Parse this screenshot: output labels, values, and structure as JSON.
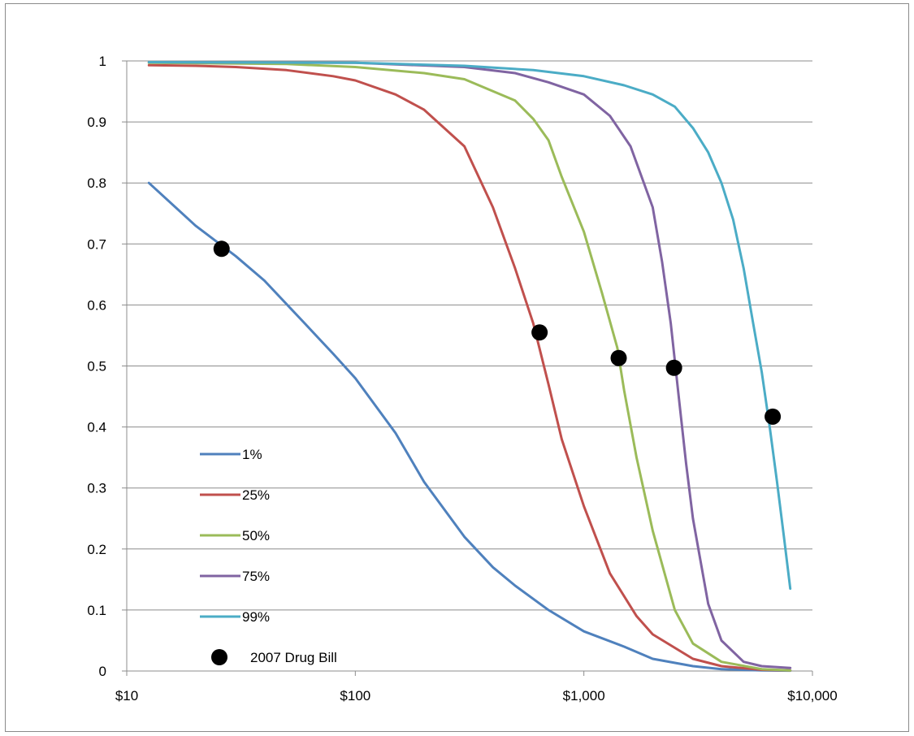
{
  "chart_data": {
    "type": "line",
    "x_scale": "log",
    "xlim": [
      10,
      10000
    ],
    "ylim": [
      0,
      1
    ],
    "grid": "horizontal",
    "legend_position": "left",
    "x_ticks": [
      {
        "value": 10,
        "label": "$10"
      },
      {
        "value": 100,
        "label": "$100"
      },
      {
        "value": 1000,
        "label": "$1,000"
      },
      {
        "value": 10000,
        "label": "$10,000"
      }
    ],
    "y_ticks": [
      {
        "value": 0,
        "label": "0"
      },
      {
        "value": 0.1,
        "label": "0.1"
      },
      {
        "value": 0.2,
        "label": "0.2"
      },
      {
        "value": 0.3,
        "label": "0.3"
      },
      {
        "value": 0.4,
        "label": "0.4"
      },
      {
        "value": 0.5,
        "label": "0.5"
      },
      {
        "value": 0.6,
        "label": "0.6"
      },
      {
        "value": 0.7,
        "label": "0.7"
      },
      {
        "value": 0.8,
        "label": "0.8"
      },
      {
        "value": 0.9,
        "label": "0.9"
      },
      {
        "value": 1,
        "label": "1"
      }
    ],
    "series": [
      {
        "name": "1%",
        "color": "#4f81bd",
        "x": [
          12.5,
          20,
          30,
          40,
          60,
          80,
          100,
          150,
          200,
          300,
          400,
          500,
          700,
          1000,
          1500,
          2000,
          3000,
          4000,
          6000,
          8000
        ],
        "y": [
          0.8,
          0.73,
          0.68,
          0.64,
          0.57,
          0.52,
          0.48,
          0.39,
          0.31,
          0.22,
          0.17,
          0.14,
          0.1,
          0.065,
          0.04,
          0.02,
          0.008,
          0.003,
          0.001,
          0.0005
        ]
      },
      {
        "name": "25%",
        "color": "#c0504d",
        "x": [
          12.5,
          20,
          30,
          50,
          80,
          100,
          150,
          200,
          300,
          400,
          500,
          600,
          700,
          800,
          1000,
          1300,
          1700,
          2000,
          3000,
          4000,
          6000,
          8000
        ],
        "y": [
          0.993,
          0.992,
          0.99,
          0.985,
          0.975,
          0.968,
          0.945,
          0.92,
          0.86,
          0.76,
          0.66,
          0.57,
          0.47,
          0.38,
          0.27,
          0.16,
          0.09,
          0.06,
          0.02,
          0.008,
          0.002,
          0.001
        ]
      },
      {
        "name": "50%",
        "color": "#9bbb59",
        "x": [
          12.5,
          50,
          100,
          200,
          300,
          500,
          600,
          700,
          800,
          1000,
          1200,
          1400,
          1500,
          1700,
          2000,
          2500,
          3000,
          4000,
          6000,
          8000
        ],
        "y": [
          0.997,
          0.995,
          0.99,
          0.98,
          0.97,
          0.935,
          0.905,
          0.87,
          0.81,
          0.72,
          0.62,
          0.53,
          0.46,
          0.35,
          0.23,
          0.1,
          0.045,
          0.015,
          0.003,
          0.001
        ]
      },
      {
        "name": "75%",
        "color": "#8064a2",
        "x": [
          12.5,
          100,
          300,
          500,
          700,
          1000,
          1300,
          1600,
          2000,
          2200,
          2400,
          2600,
          2800,
          3000,
          3500,
          4000,
          5000,
          6000,
          8000
        ],
        "y": [
          0.998,
          0.997,
          0.99,
          0.98,
          0.965,
          0.945,
          0.91,
          0.86,
          0.76,
          0.67,
          0.57,
          0.45,
          0.34,
          0.25,
          0.11,
          0.05,
          0.015,
          0.008,
          0.005
        ]
      },
      {
        "name": "99%",
        "color": "#4bacc6",
        "x": [
          12.5,
          100,
          300,
          600,
          1000,
          1500,
          2000,
          2500,
          3000,
          3500,
          4000,
          4500,
          5000,
          5500,
          6000,
          6500,
          7000,
          7500,
          8000
        ],
        "y": [
          0.998,
          0.997,
          0.992,
          0.985,
          0.975,
          0.96,
          0.945,
          0.925,
          0.89,
          0.85,
          0.8,
          0.74,
          0.66,
          0.57,
          0.49,
          0.4,
          0.31,
          0.22,
          0.135
        ]
      },
      {
        "name": "2007 Drug Bill",
        "color": "#000000",
        "marker": "circle",
        "x": [
          26,
          640,
          1420,
          2480,
          6700
        ],
        "y": [
          0.692,
          0.555,
          0.513,
          0.497,
          0.417
        ]
      }
    ]
  }
}
